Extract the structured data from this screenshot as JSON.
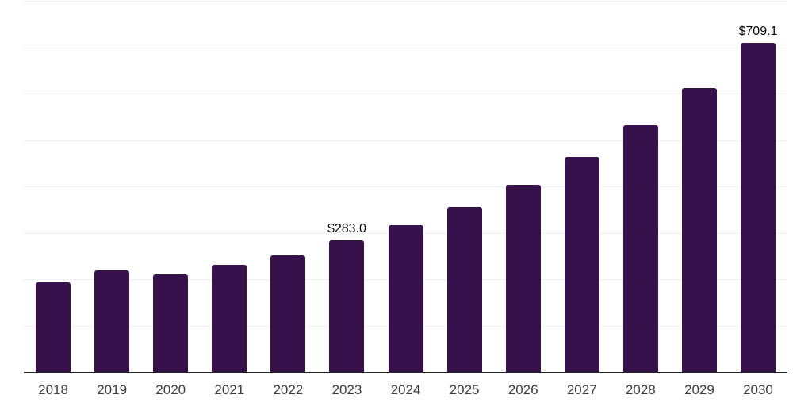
{
  "chart_data": {
    "type": "bar",
    "title": "",
    "xlabel": "",
    "ylabel": "",
    "categories": [
      "2018",
      "2019",
      "2020",
      "2021",
      "2022",
      "2023",
      "2024",
      "2025",
      "2026",
      "2027",
      "2028",
      "2029",
      "2030"
    ],
    "values": [
      194,
      218,
      211,
      231,
      252,
      283.0,
      316,
      355,
      403,
      464,
      532,
      612,
      709.1
    ],
    "bar_labels": [
      "",
      "",
      "",
      "",
      "",
      "$283.0",
      "",
      "",
      "",
      "",
      "",
      "",
      "$709.1"
    ],
    "ylim": [
      0,
      800
    ],
    "gridline_step": 100,
    "grid": true,
    "legend": false,
    "y_axis_tick_labels_visible": false
  },
  "colors": {
    "background": "#ffffff",
    "bar": "#36114a",
    "gridline": "#f0f0f0",
    "axis_line": "#222222",
    "tick_label": "#3d3d3d",
    "data_label": "#0a0a0a"
  }
}
